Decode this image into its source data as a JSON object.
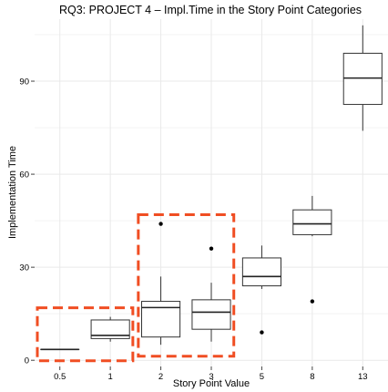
{
  "chart_data": {
    "type": "boxplot",
    "title": "RQ3: PROJECT 4 – Impl.Time in the Story Point Categories",
    "xlabel": "Story Point Value",
    "ylabel": "Implementation Time",
    "ylim": [
      -2,
      110
    ],
    "yticks": [
      0,
      30,
      60,
      90
    ],
    "grid": true,
    "categories": [
      "0.5",
      "1",
      "2",
      "3",
      "5",
      "8",
      "13"
    ],
    "boxes": [
      {
        "category": "0.5",
        "whisker_low": 3.5,
        "q1": 3.5,
        "median": 3.5,
        "q3": 3.5,
        "whisker_high": 3.5,
        "outliers": []
      },
      {
        "category": "1",
        "whisker_low": 6,
        "q1": 7,
        "median": 8,
        "q3": 13,
        "whisker_high": 14,
        "outliers": []
      },
      {
        "category": "2",
        "whisker_low": 5,
        "q1": 7.5,
        "median": 17,
        "q3": 19,
        "whisker_high": 27,
        "outliers": [
          44
        ]
      },
      {
        "category": "3",
        "whisker_low": 6,
        "q1": 10,
        "median": 15.5,
        "q3": 19.5,
        "whisker_high": 25,
        "outliers": [
          36
        ]
      },
      {
        "category": "5",
        "whisker_low": 23,
        "q1": 24,
        "median": 27,
        "q3": 33,
        "whisker_high": 37,
        "outliers": [
          9
        ]
      },
      {
        "category": "8",
        "whisker_low": 40,
        "q1": 40.5,
        "median": 44,
        "q3": 48.5,
        "whisker_high": 53,
        "outliers": [
          19
        ]
      },
      {
        "category": "13",
        "whisker_low": 74,
        "q1": 82.5,
        "median": 91,
        "q3": 99,
        "whisker_high": 108,
        "outliers": []
      }
    ],
    "highlight_groups": [
      {
        "categories": [
          "0.5",
          "1"
        ],
        "color": "#f04e23"
      },
      {
        "categories": [
          "2",
          "3"
        ],
        "color": "#f04e23"
      }
    ]
  }
}
